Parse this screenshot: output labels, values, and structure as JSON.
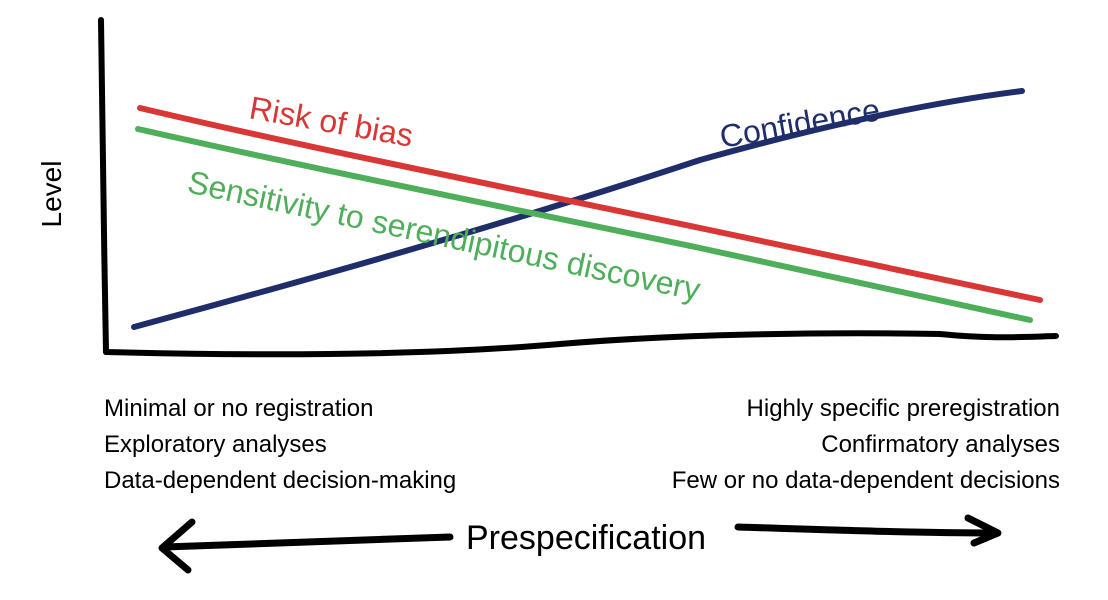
{
  "axes": {
    "y_label": "Level",
    "x_label": "Prespecification"
  },
  "series": [
    {
      "name": "Risk of bias",
      "color": "#d93636"
    },
    {
      "name": "Confidence",
      "color": "#1f2e6b"
    },
    {
      "name": "Sensitivity to serendipitous discovery",
      "color": "#4fae5a"
    }
  ],
  "left_notes": [
    "Minimal or no registration",
    "Exploratory analyses",
    "Data-dependent decision-making"
  ],
  "right_notes": [
    "Highly specific preregistration",
    "Confirmatory analyses",
    "Few or no data-dependent decisions"
  ]
}
